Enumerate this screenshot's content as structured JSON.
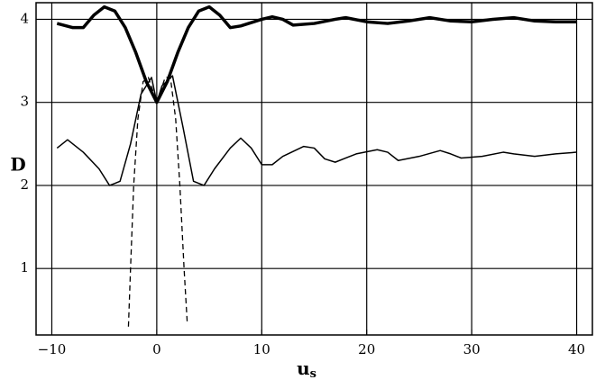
{
  "chart_data": {
    "type": "line",
    "xlabel": "u",
    "xlabel_sub": "s",
    "ylabel": "D",
    "xlim": [
      -11.5,
      41.5
    ],
    "ylim": [
      0.2,
      4.2
    ],
    "xticks": [
      {
        "value": -10,
        "label": "−10"
      },
      0,
      10,
      20,
      30,
      40
    ],
    "yticks": [
      1,
      2,
      3,
      4
    ],
    "grid": true,
    "series": [
      {
        "color": "#000000",
        "line_width": 3.5,
        "dash": "none",
        "x": [
          -9.5,
          -8,
          -7,
          -6,
          -5,
          -4,
          -3,
          -2,
          -1,
          0,
          1,
          2,
          3,
          4,
          5,
          6,
          7,
          8,
          10,
          11,
          12,
          13,
          15,
          17,
          18,
          20,
          22,
          24,
          26,
          28,
          30,
          32,
          34,
          36,
          38,
          40
        ],
        "values": [
          3.95,
          3.9,
          3.9,
          4.05,
          4.15,
          4.1,
          3.9,
          3.6,
          3.25,
          3.0,
          3.25,
          3.6,
          3.9,
          4.1,
          4.15,
          4.05,
          3.9,
          3.92,
          4.0,
          4.03,
          4.0,
          3.93,
          3.95,
          4.0,
          4.02,
          3.97,
          3.95,
          3.98,
          4.02,
          3.98,
          3.97,
          4.0,
          4.02,
          3.98,
          3.97,
          3.97
        ]
      },
      {
        "color": "#000000",
        "line_width": 1.5,
        "dash": "none",
        "x": [
          -9.5,
          -8.5,
          -7,
          -5.5,
          -4.5,
          -3.5,
          -2.5,
          -1.5,
          -0.5,
          0,
          0.5,
          1.5,
          2.5,
          3.5,
          4.5,
          5.5,
          7,
          8,
          9,
          10,
          11,
          12,
          14,
          15,
          16,
          17,
          19,
          21,
          22,
          23,
          25,
          27,
          28,
          29,
          31,
          33,
          34,
          36,
          38,
          40
        ],
        "values": [
          2.45,
          2.55,
          2.4,
          2.2,
          2.0,
          2.05,
          2.5,
          3.1,
          3.3,
          3.0,
          3.2,
          3.32,
          2.7,
          2.05,
          2.0,
          2.2,
          2.45,
          2.57,
          2.45,
          2.25,
          2.25,
          2.35,
          2.47,
          2.45,
          2.32,
          2.28,
          2.38,
          2.43,
          2.4,
          2.3,
          2.35,
          2.42,
          2.38,
          2.33,
          2.35,
          2.4,
          2.38,
          2.35,
          2.38,
          2.4
        ]
      },
      {
        "color": "#000000",
        "line_width": 1.3,
        "dash": "6 4",
        "x": [
          -2.7,
          -2.5,
          -2.2,
          -1.8,
          -1.3,
          -0.8,
          0,
          0.8,
          1.3,
          1.8,
          2.2,
          2.6,
          2.9
        ],
        "values": [
          0.3,
          1.0,
          2.0,
          2.8,
          3.25,
          3.3,
          3.0,
          3.3,
          3.3,
          2.8,
          2.0,
          1.0,
          0.35
        ]
      }
    ]
  }
}
